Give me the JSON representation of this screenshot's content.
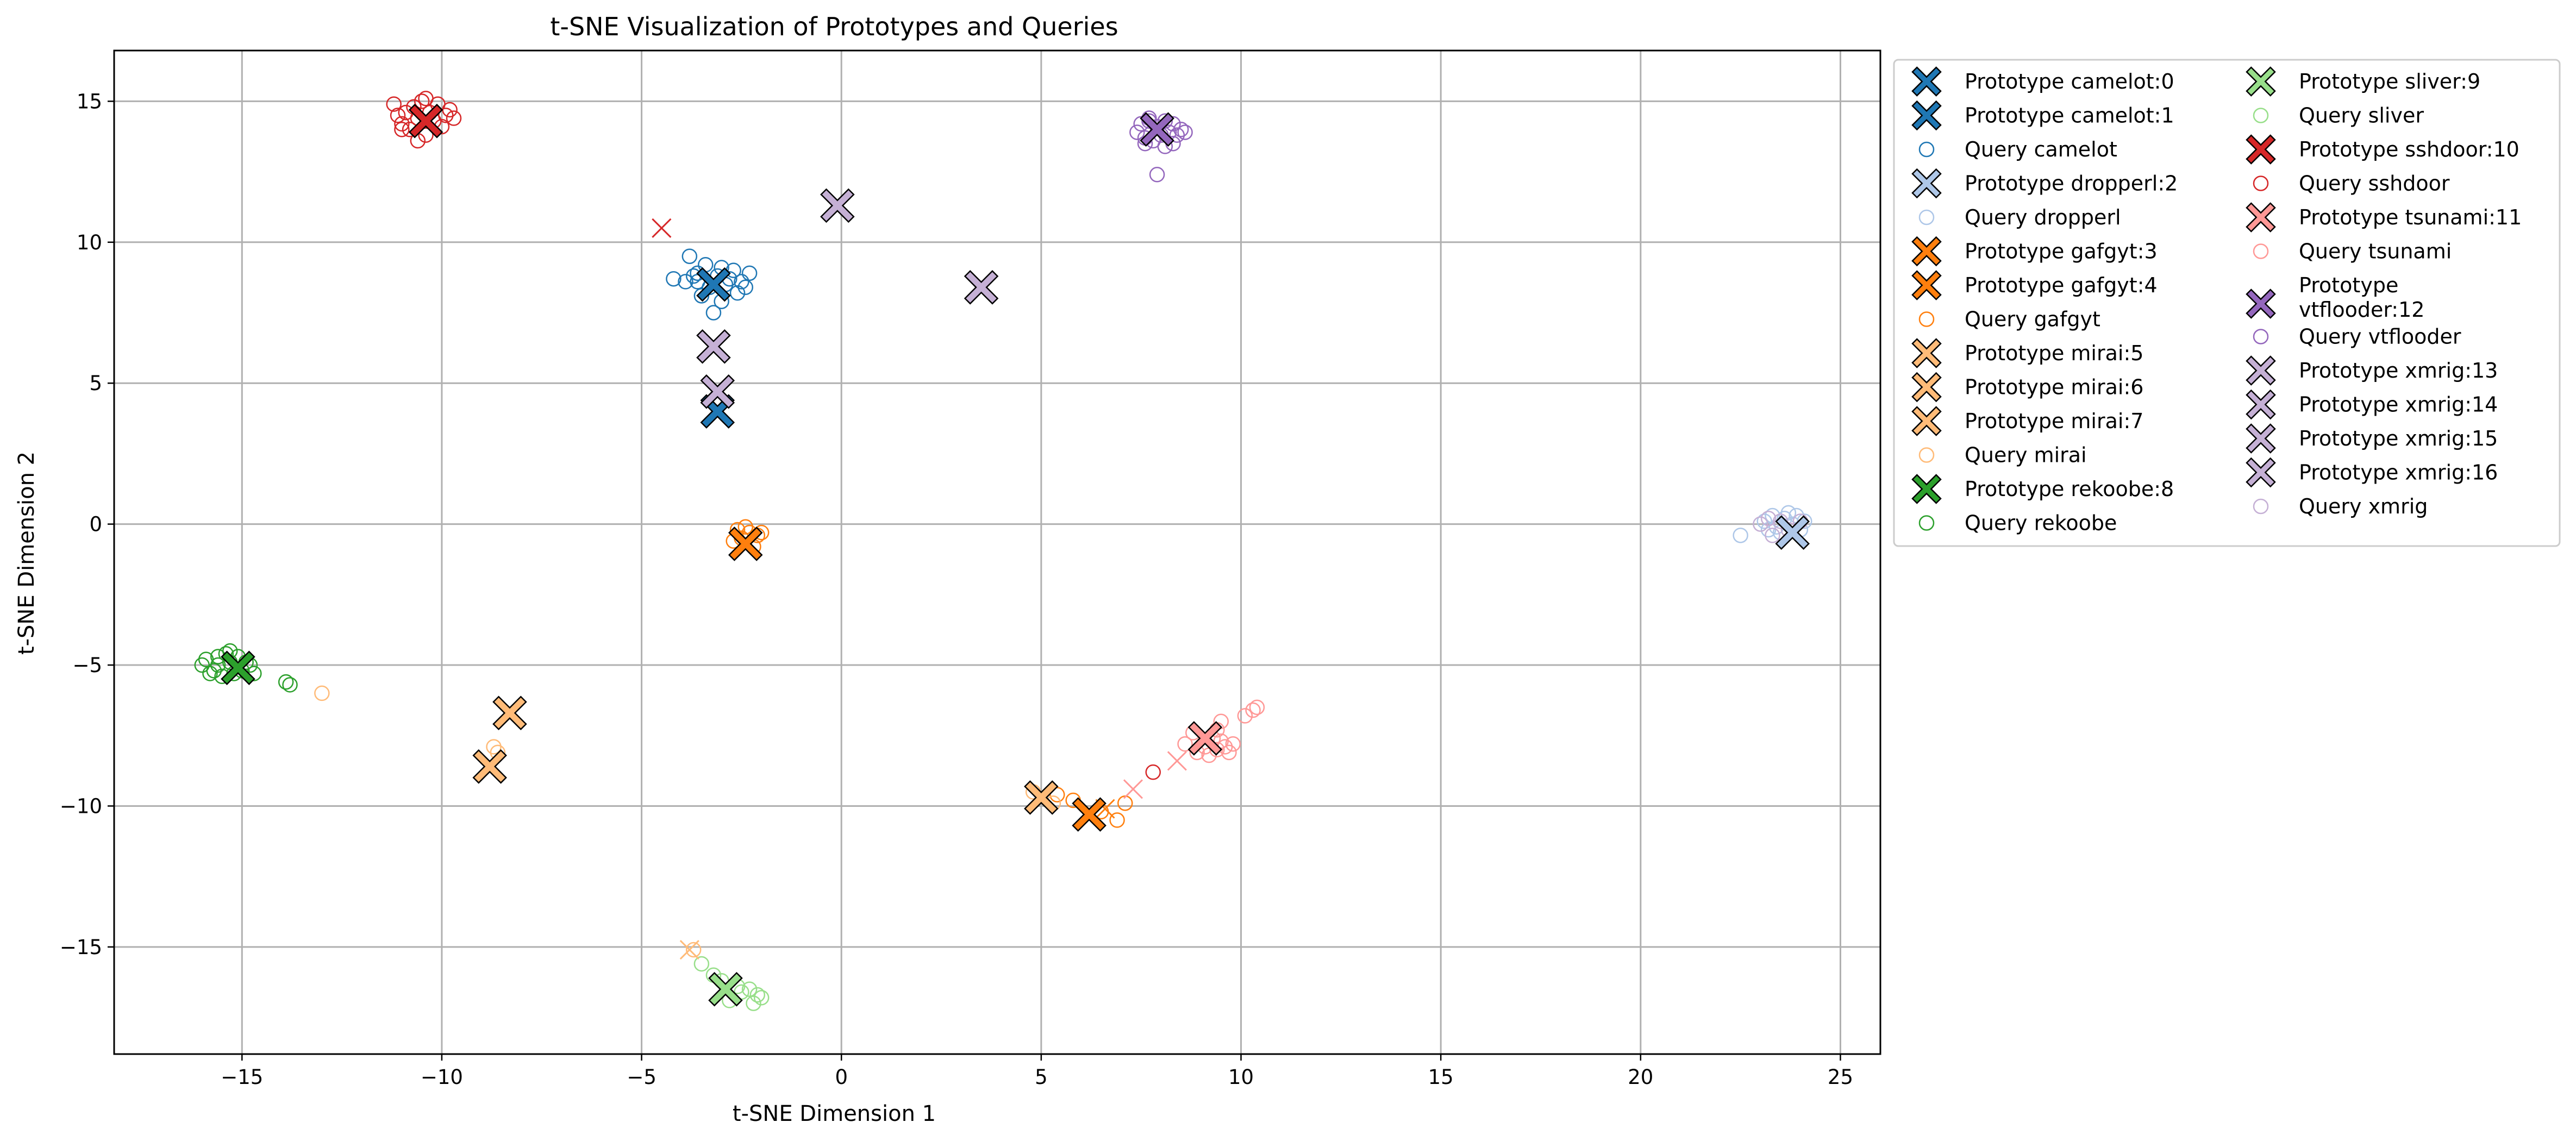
{
  "chart_data": {
    "type": "scatter",
    "title": "t-SNE Visualization of Prototypes and Queries",
    "xlabel": "t-SNE Dimension 1",
    "ylabel": "t-SNE Dimension 2",
    "xlim": [
      -18.2,
      26.0
    ],
    "ylim": [
      -18.8,
      16.8
    ],
    "xticks": [
      -15,
      -10,
      -5,
      0,
      5,
      10,
      15,
      20,
      25
    ],
    "yticks": [
      -15,
      -10,
      -5,
      0,
      5,
      10,
      15
    ],
    "grid": true,
    "legend_placement": "outside-right",
    "legend_columns": 2,
    "classes": [
      {
        "name": "camelot",
        "color": "#1f77b4"
      },
      {
        "name": "dropperl",
        "color": "#aec7e8"
      },
      {
        "name": "gafgyt",
        "color": "#ff7f0e"
      },
      {
        "name": "mirai",
        "color": "#ffbb78"
      },
      {
        "name": "rekoobe",
        "color": "#2ca02c"
      },
      {
        "name": "sliver",
        "color": "#98df8a"
      },
      {
        "name": "sshdoor",
        "color": "#d62728"
      },
      {
        "name": "tsunami",
        "color": "#ff9896"
      },
      {
        "name": "vtflooder",
        "color": "#9467bd"
      },
      {
        "name": "xmrig",
        "color": "#c5b0d5"
      }
    ],
    "prototypes": [
      {
        "label": "Prototype camelot:0",
        "class": "camelot",
        "x": -3.2,
        "y": 8.5
      },
      {
        "label": "Prototype camelot:1",
        "class": "camelot",
        "x": -3.1,
        "y": 4.0
      },
      {
        "label": "Prototype dropperl:2",
        "class": "dropperl",
        "x": 23.8,
        "y": -0.3
      },
      {
        "label": "Prototype gafgyt:3",
        "class": "gafgyt",
        "x": -2.4,
        "y": -0.7
      },
      {
        "label": "Prototype gafgyt:4",
        "class": "gafgyt",
        "x": 6.2,
        "y": -10.3
      },
      {
        "label": "Prototype mirai:5",
        "class": "mirai",
        "x": -8.3,
        "y": -6.7
      },
      {
        "label": "Prototype mirai:6",
        "class": "mirai",
        "x": -8.8,
        "y": -8.6
      },
      {
        "label": "Prototype mirai:7",
        "class": "mirai",
        "x": 5.0,
        "y": -9.7
      },
      {
        "label": "Prototype rekoobe:8",
        "class": "rekoobe",
        "x": -15.1,
        "y": -5.1
      },
      {
        "label": "Prototype sliver:9",
        "class": "sliver",
        "x": -2.9,
        "y": -16.5
      },
      {
        "label": "Prototype sshdoor:10",
        "class": "sshdoor",
        "x": -10.4,
        "y": 14.3
      },
      {
        "label": "Prototype tsunami:11",
        "class": "tsunami",
        "x": 9.1,
        "y": -7.6
      },
      {
        "label": "Prototype vtflooder:12",
        "class": "vtflooder",
        "x": 7.9,
        "y": 14.0
      },
      {
        "label": "Prototype xmrig:13",
        "class": "xmrig",
        "x": -0.1,
        "y": 11.3
      },
      {
        "label": "Prototype xmrig:14",
        "class": "xmrig",
        "x": 3.5,
        "y": 8.4
      },
      {
        "label": "Prototype xmrig:15",
        "class": "xmrig",
        "x": -3.2,
        "y": 6.3
      },
      {
        "label": "Prototype xmrig:16",
        "class": "xmrig",
        "x": -3.1,
        "y": 4.7
      }
    ],
    "queries": [
      {
        "label": "Query camelot",
        "class": "camelot",
        "points": [
          [
            -3.8,
            9.5
          ],
          [
            -3.6,
            8.9
          ],
          [
            -3.4,
            9.2
          ],
          [
            -3.3,
            8.4
          ],
          [
            -3.1,
            8.8
          ],
          [
            -2.9,
            8.5
          ],
          [
            -2.7,
            9.0
          ],
          [
            -2.5,
            8.6
          ],
          [
            -2.6,
            8.2
          ],
          [
            -2.3,
            8.9
          ],
          [
            -3.9,
            8.6
          ],
          [
            -4.2,
            8.7
          ],
          [
            -3.5,
            8.1
          ],
          [
            -3.0,
            7.9
          ],
          [
            -3.2,
            7.5
          ],
          [
            -2.8,
            8.7
          ],
          [
            -3.6,
            8.6
          ],
          [
            -3.0,
            9.1
          ],
          [
            -2.4,
            8.4
          ],
          [
            -3.7,
            8.8
          ]
        ]
      },
      {
        "label": "Query dropperl",
        "class": "dropperl",
        "points": [
          [
            22.5,
            -0.4
          ],
          [
            23.1,
            0.1
          ],
          [
            23.3,
            0.3
          ],
          [
            23.4,
            -0.1
          ],
          [
            23.6,
            0.2
          ],
          [
            23.7,
            0.4
          ],
          [
            23.8,
            0.0
          ],
          [
            23.9,
            0.3
          ],
          [
            24.0,
            -0.2
          ],
          [
            23.5,
            -0.3
          ],
          [
            23.2,
            -0.2
          ],
          [
            24.1,
            0.1
          ]
        ]
      },
      {
        "label": "Query gafgyt",
        "class": "gafgyt",
        "points": [
          [
            -2.6,
            -0.2
          ],
          [
            -2.3,
            -0.3
          ],
          [
            -2.1,
            -0.4
          ],
          [
            -2.5,
            -0.5
          ],
          [
            -2.7,
            -0.6
          ],
          [
            -2.2,
            -0.8
          ],
          [
            -2.4,
            -0.1
          ],
          [
            -2.0,
            -0.3
          ],
          [
            5.8,
            -9.8
          ],
          [
            6.5,
            -10.2
          ],
          [
            6.9,
            -10.5
          ],
          [
            7.1,
            -9.9
          ],
          [
            5.4,
            -9.6
          ]
        ]
      },
      {
        "label": "Query mirai",
        "class": "mirai",
        "points": [
          [
            -13.0,
            -6.0
          ],
          [
            -8.6,
            -8.1
          ],
          [
            -8.7,
            -7.9
          ],
          [
            -3.7,
            -15.1
          ],
          [
            5.3,
            -9.9
          ],
          [
            4.8,
            -9.5
          ]
        ]
      },
      {
        "label": "Query rekoobe",
        "class": "rekoobe",
        "points": [
          [
            -16.0,
            -5.0
          ],
          [
            -15.9,
            -4.8
          ],
          [
            -15.7,
            -5.2
          ],
          [
            -15.6,
            -4.7
          ],
          [
            -15.5,
            -5.4
          ],
          [
            -15.4,
            -4.6
          ],
          [
            -15.3,
            -4.9
          ],
          [
            -15.2,
            -5.3
          ],
          [
            -15.1,
            -4.7
          ],
          [
            -15.0,
            -5.2
          ],
          [
            -14.9,
            -4.9
          ],
          [
            -14.8,
            -5.0
          ],
          [
            -14.7,
            -5.3
          ],
          [
            -15.6,
            -5.0
          ],
          [
            -13.9,
            -5.6
          ],
          [
            -13.8,
            -5.7
          ],
          [
            -15.8,
            -5.3
          ],
          [
            -15.3,
            -4.5
          ]
        ]
      },
      {
        "label": "Query sliver",
        "class": "sliver",
        "points": [
          [
            -3.5,
            -15.6
          ],
          [
            -3.0,
            -16.2
          ],
          [
            -2.8,
            -16.9
          ],
          [
            -2.5,
            -16.6
          ],
          [
            -2.3,
            -16.5
          ],
          [
            -2.2,
            -17.0
          ],
          [
            -2.1,
            -16.7
          ],
          [
            -2.0,
            -16.8
          ],
          [
            -2.6,
            -16.4
          ],
          [
            -3.2,
            -16.0
          ]
        ]
      },
      {
        "label": "Query sshdoor",
        "class": "sshdoor",
        "points": [
          [
            -11.2,
            14.9
          ],
          [
            -11.1,
            14.5
          ],
          [
            -11.0,
            14.2
          ],
          [
            -10.9,
            14.6
          ],
          [
            -10.8,
            14.0
          ],
          [
            -10.7,
            14.8
          ],
          [
            -10.6,
            14.4
          ],
          [
            -10.5,
            15.0
          ],
          [
            -10.4,
            13.8
          ],
          [
            -10.3,
            14.6
          ],
          [
            -10.2,
            14.3
          ],
          [
            -10.1,
            14.9
          ],
          [
            -10.0,
            14.1
          ],
          [
            -9.9,
            14.5
          ],
          [
            -9.8,
            14.7
          ],
          [
            -9.7,
            14.4
          ],
          [
            -10.6,
            13.6
          ],
          [
            -11.0,
            14.0
          ],
          [
            -10.4,
            15.1
          ],
          [
            7.8,
            -8.8
          ]
        ]
      },
      {
        "label": "Query tsunami",
        "class": "tsunami",
        "points": [
          [
            8.6,
            -7.8
          ],
          [
            8.8,
            -7.4
          ],
          [
            8.9,
            -8.1
          ],
          [
            9.1,
            -7.9
          ],
          [
            9.2,
            -8.2
          ],
          [
            9.3,
            -7.6
          ],
          [
            9.4,
            -8.0
          ],
          [
            9.5,
            -7.7
          ],
          [
            9.6,
            -7.9
          ],
          [
            9.7,
            -8.1
          ],
          [
            9.4,
            -7.3
          ],
          [
            9.5,
            -7.0
          ],
          [
            10.1,
            -6.8
          ],
          [
            10.3,
            -6.6
          ],
          [
            10.4,
            -6.5
          ],
          [
            9.8,
            -7.8
          ]
        ]
      },
      {
        "label": "Query vtflooder",
        "class": "vtflooder",
        "points": [
          [
            7.4,
            13.9
          ],
          [
            7.5,
            14.2
          ],
          [
            7.6,
            13.7
          ],
          [
            7.7,
            14.4
          ],
          [
            7.8,
            13.6
          ],
          [
            7.9,
            14.1
          ],
          [
            8.0,
            13.8
          ],
          [
            8.1,
            14.3
          ],
          [
            8.2,
            13.9
          ],
          [
            8.3,
            14.2
          ],
          [
            8.4,
            13.8
          ],
          [
            8.5,
            14.0
          ],
          [
            8.6,
            13.9
          ],
          [
            7.9,
            12.4
          ],
          [
            8.1,
            13.4
          ],
          [
            7.6,
            13.5
          ],
          [
            8.3,
            13.5
          ],
          [
            7.7,
            14.3
          ]
        ]
      },
      {
        "label": "Query xmrig",
        "class": "xmrig",
        "points": [
          [
            23.0,
            0.0
          ],
          [
            23.2,
            0.2
          ],
          [
            23.5,
            0.1
          ],
          [
            23.7,
            -0.2
          ],
          [
            24.0,
            0.1
          ],
          [
            23.3,
            -0.4
          ]
        ]
      }
    ],
    "misc_markers": [
      {
        "class": "sshdoor",
        "x": -4.5,
        "y": 10.5
      },
      {
        "class": "tsunami",
        "x": 7.3,
        "y": -9.4
      },
      {
        "class": "tsunami",
        "x": 8.4,
        "y": -8.4
      },
      {
        "class": "gafgyt",
        "x": 6.6,
        "y": -10.1
      },
      {
        "class": "mirai",
        "x": -3.8,
        "y": -15.1
      }
    ],
    "legend_entries": [
      {
        "kind": "prototype",
        "class": "camelot",
        "label": "Prototype camelot:0"
      },
      {
        "kind": "prototype",
        "class": "camelot",
        "label": "Prototype camelot:1"
      },
      {
        "kind": "query",
        "class": "camelot",
        "label": "Query camelot"
      },
      {
        "kind": "prototype",
        "class": "dropperl",
        "label": "Prototype dropperl:2"
      },
      {
        "kind": "query",
        "class": "dropperl",
        "label": "Query dropperl"
      },
      {
        "kind": "prototype",
        "class": "gafgyt",
        "label": "Prototype gafgyt:3"
      },
      {
        "kind": "prototype",
        "class": "gafgyt",
        "label": "Prototype gafgyt:4"
      },
      {
        "kind": "query",
        "class": "gafgyt",
        "label": "Query gafgyt"
      },
      {
        "kind": "prototype",
        "class": "mirai",
        "label": "Prototype mirai:5"
      },
      {
        "kind": "prototype",
        "class": "mirai",
        "label": "Prototype mirai:6"
      },
      {
        "kind": "prototype",
        "class": "mirai",
        "label": "Prototype mirai:7"
      },
      {
        "kind": "query",
        "class": "mirai",
        "label": "Query mirai"
      },
      {
        "kind": "prototype",
        "class": "rekoobe",
        "label": "Prototype rekoobe:8"
      },
      {
        "kind": "query",
        "class": "rekoobe",
        "label": "Query rekoobe"
      },
      {
        "kind": "prototype",
        "class": "sliver",
        "label": "Prototype sliver:9"
      },
      {
        "kind": "query",
        "class": "sliver",
        "label": "Query sliver"
      },
      {
        "kind": "prototype",
        "class": "sshdoor",
        "label": "Prototype sshdoor:10"
      },
      {
        "kind": "query",
        "class": "sshdoor",
        "label": "Query sshdoor"
      },
      {
        "kind": "prototype",
        "class": "tsunami",
        "label": "Prototype tsunami:11"
      },
      {
        "kind": "query",
        "class": "tsunami",
        "label": "Query tsunami"
      },
      {
        "kind": "prototype",
        "class": "vtflooder",
        "label": "Prototype vtflooder:12",
        "lines": [
          "Prototype",
          "vtflooder:12"
        ]
      },
      {
        "kind": "query",
        "class": "vtflooder",
        "label": "Query vtflooder"
      },
      {
        "kind": "prototype",
        "class": "xmrig",
        "label": "Prototype xmrig:13"
      },
      {
        "kind": "prototype",
        "class": "xmrig",
        "label": "Prototype xmrig:14"
      },
      {
        "kind": "prototype",
        "class": "xmrig",
        "label": "Prototype xmrig:15"
      },
      {
        "kind": "prototype",
        "class": "xmrig",
        "label": "Prototype xmrig:16"
      },
      {
        "kind": "query",
        "class": "xmrig",
        "label": "Query xmrig"
      }
    ]
  }
}
